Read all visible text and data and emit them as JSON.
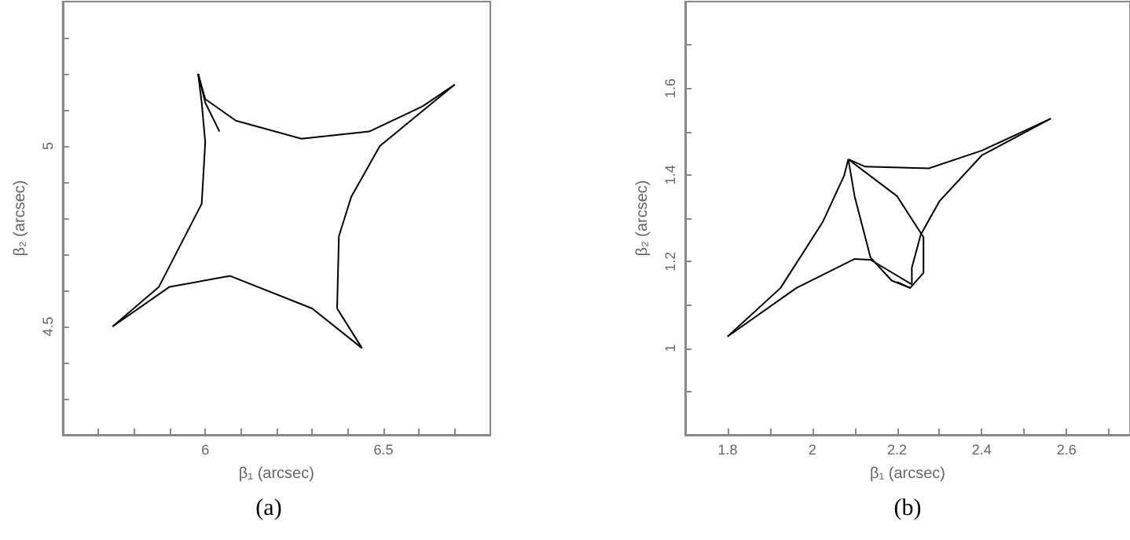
{
  "chart_data": [
    {
      "type": "line",
      "xlabel": "β₁ (arcsec)",
      "ylabel": "β₂ (arcsec)",
      "annotations": [
        "(a)"
      ],
      "marker": "none",
      "line_style": "solid",
      "xlim": [
        5.6,
        6.8
      ],
      "ylim": [
        4.2,
        5.4
      ],
      "xticks": [
        {
          "value": 5.7,
          "label": null
        },
        {
          "value": 5.8,
          "label": null
        },
        {
          "value": 5.9,
          "label": null
        },
        6,
        {
          "value": 6.1,
          "label": null
        },
        {
          "value": 6.2,
          "label": null
        },
        {
          "value": 6.3,
          "label": null
        },
        {
          "value": 6.4,
          "label": null
        },
        6.5,
        {
          "value": 6.6,
          "label": null
        },
        {
          "value": 6.7,
          "label": null
        }
      ],
      "yticks": [
        {
          "value": 4.3,
          "label": null
        },
        {
          "value": 4.4,
          "label": null
        },
        4.5,
        {
          "value": 4.6,
          "label": null
        },
        {
          "value": 4.7,
          "label": null
        },
        {
          "value": 4.8,
          "label": null
        },
        {
          "value": 4.9,
          "label": null
        },
        5,
        {
          "value": 5.1,
          "label": null
        },
        {
          "value": 5.2,
          "label": null
        },
        {
          "value": 5.3,
          "label": null
        }
      ],
      "series": [
        {
          "color": "#000000",
          "x": [
            5.98,
            6.0,
            6.086,
            6.27,
            6.46,
            6.61,
            6.7
          ],
          "values": [
            5.2,
            5.13,
            5.07,
            5.02,
            5.04,
            5.11,
            5.17
          ]
        },
        {
          "color": "#000000",
          "x": [
            6.37,
            6.375,
            6.41,
            6.49,
            6.7
          ],
          "values": [
            4.55,
            4.75,
            4.86,
            5.0,
            5.17
          ]
        },
        {
          "color": "#000000",
          "x": [
            6.37,
            6.44
          ],
          "values": [
            4.55,
            4.44
          ]
        },
        {
          "color": "#000000",
          "x": [
            5.74,
            5.9,
            6.07,
            6.3,
            6.44
          ],
          "values": [
            4.5,
            4.61,
            4.64,
            4.55,
            4.44
          ]
        },
        {
          "color": "#000000",
          "x": [
            5.74,
            5.87,
            5.99,
            6.0,
            5.99,
            5.98
          ],
          "values": [
            4.5,
            4.61,
            4.84,
            5.01,
            5.12,
            5.2
          ]
        },
        {
          "color": "#000000",
          "x": [
            5.98,
            6.0,
            6.04
          ],
          "values": [
            5.2,
            5.12,
            5.04
          ]
        }
      ]
    },
    {
      "type": "line",
      "xlabel": "β₁ (arcsec)",
      "ylabel": "β₂ (arcsec)",
      "annotations": [
        "(b)"
      ],
      "marker": "none",
      "line_style": "solid",
      "xlim": [
        1.7,
        2.75
      ],
      "ylim": [
        0.8,
        1.8
      ],
      "xticks": [
        1.8,
        {
          "value": 1.9,
          "label": null
        },
        2,
        {
          "value": 2.1,
          "label": null
        },
        2.2,
        {
          "value": 2.3,
          "label": null
        },
        2.4,
        {
          "value": 2.5,
          "label": null
        },
        2.6,
        {
          "value": 2.7,
          "label": null
        }
      ],
      "yticks": [
        {
          "value": 0.9,
          "label": null
        },
        1,
        {
          "value": 1.1,
          "label": null
        },
        1.2,
        {
          "value": 1.3,
          "label": null
        },
        1.4,
        {
          "value": 1.5,
          "label": null
        },
        1.6,
        {
          "value": 1.7,
          "label": null
        }
      ],
      "series": [
        {
          "color": "#000000",
          "x": [
            1.8,
            1.925,
            2.025,
            2.075,
            2.085
          ],
          "values": [
            1.027,
            1.139,
            1.292,
            1.398,
            1.436
          ]
        },
        {
          "color": "#000000",
          "x": [
            1.8,
            1.9625,
            2.1,
            2.1375,
            2.235
          ],
          "values": [
            1.027,
            1.139,
            1.206,
            1.204,
            1.147
          ]
        },
        {
          "color": "#000000",
          "x": [
            2.085,
            2.125,
            2.275,
            2.4,
            2.563
          ],
          "values": [
            1.436,
            1.419,
            1.415,
            1.456,
            1.53
          ]
        },
        {
          "color": "#000000",
          "x": [
            2.563,
            2.4,
            2.3,
            2.256,
            2.235,
            2.235
          ],
          "values": [
            1.53,
            1.445,
            1.339,
            1.262,
            1.186,
            1.147
          ]
        },
        {
          "color": "#000000",
          "x": [
            2.085,
            2.1,
            2.1375,
            2.1875,
            2.231
          ],
          "values": [
            1.436,
            1.35,
            1.209,
            1.156,
            1.139
          ]
        },
        {
          "color": "#000000",
          "x": [
            2.085,
            2.2,
            2.2625,
            2.2625,
            2.231,
            2.2
          ],
          "values": [
            1.436,
            1.351,
            1.256,
            1.174,
            1.139,
            1.153
          ]
        }
      ]
    }
  ]
}
